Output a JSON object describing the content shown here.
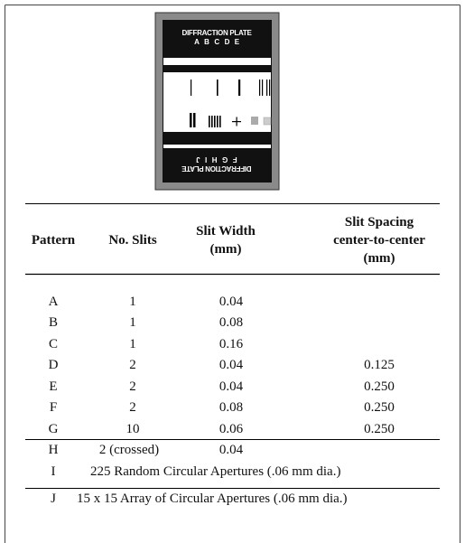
{
  "plate": {
    "top_title": "DIFFRACTION PLATE",
    "top_letters": "A   B   C   D   E",
    "bottom_title": "DIFFRACTION PLATE",
    "bottom_letters": "F   G   H   I   J"
  },
  "table": {
    "headers": [
      [
        "Pattern"
      ],
      [
        "No. Slits"
      ],
      [
        "Slit Width",
        "(mm)"
      ],
      [
        "Slit Spacing",
        "center-to-center",
        "(mm)"
      ]
    ],
    "rows": [
      [
        "A",
        "1",
        "0.04"
      ],
      [
        "B",
        "1",
        "0.08"
      ],
      [
        "C",
        "1",
        "0.16"
      ],
      [
        "D",
        "2",
        "0.04",
        "0.125"
      ],
      [
        "E",
        "2",
        "0.04",
        "0.250"
      ],
      [
        "F",
        "2",
        "0.08",
        "0.250"
      ],
      [
        "G",
        "10",
        "0.06",
        "0.250"
      ],
      [
        "H",
        "2 (crossed)",
        "0.04"
      ],
      [
        "I",
        "225 Random Circular Apertures (.06 mm dia.)"
      ],
      [
        "J",
        "15 x 15 Array of Circular Apertures (.06 mm dia.)"
      ]
    ]
  }
}
